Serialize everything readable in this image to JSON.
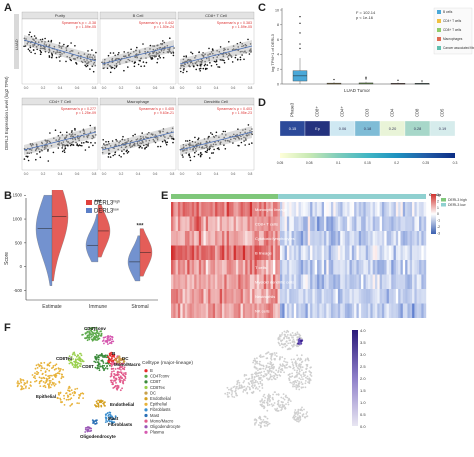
{
  "panels": {
    "A": {
      "letter": "A",
      "ylabel": "DERL3 Expression Level (log2 TPM)",
      "strip_label": "LUAD",
      "facets": [
        {
          "title": "Purity",
          "stat1": "Spearman's ρ = -0.38",
          "stat2": "p = 1.59e-05"
        },
        {
          "title": "B Cell",
          "stat1": "Spearman's ρ = 0.442",
          "stat2": "p = 1.50e-24"
        },
        {
          "title": "CD8+ T Cell",
          "stat1": "Spearman's ρ = 0.383",
          "stat2": "p = 1.59e-05"
        },
        {
          "title": "CD4+ T Cell",
          "stat1": "Spearman's ρ = 0.277",
          "stat2": "p = 1.25e-09"
        },
        {
          "title": "Macrophage",
          "stat1": "Spearman's ρ = 0.405",
          "stat2": "p = 9.63e-21"
        },
        {
          "title": "Dendritic Cell",
          "stat1": "Spearman's ρ = 0.403",
          "stat2": "p = 1.95e-23"
        }
      ],
      "x_ticks": [
        "0.4",
        "0.6",
        "0.8",
        "0.0",
        "0.2",
        "0.4",
        "0.6",
        "0.0",
        "0.2",
        "0.4",
        "0.6",
        "0.8",
        "1.0"
      ]
    },
    "B": {
      "letter": "B",
      "ylabel": "Score",
      "legend_high": "DERL3",
      "legend_high_sup": "high",
      "legend_low": "DERL3",
      "legend_low_sup": "low",
      "color_high": "#e0413c",
      "color_low": "#5b7fc7",
      "categories": [
        "Estimate",
        "Immune",
        "Stromal"
      ],
      "significance": [
        "***",
        "***",
        "***"
      ],
      "y_ticks": [
        "-500",
        "0",
        "500",
        "1000",
        "1500"
      ]
    },
    "C": {
      "letter": "C",
      "stat1": "F = 102.14",
      "stat2": "p < 1e-16",
      "ylabel": "log TPM+1 of DERL3",
      "xlabel": "LUAD Tumor",
      "legend": [
        {
          "label": "B cells",
          "color": "#4aa8d8"
        },
        {
          "label": "CD4+ T cells",
          "color": "#f0c040"
        },
        {
          "label": "CD8+ T cells",
          "color": "#8fcc6a"
        },
        {
          "label": "Macrophages",
          "color": "#e06a50"
        },
        {
          "label": "Cancer associated fibroblasts",
          "color": "#5fbfae"
        }
      ],
      "y_ticks": [
        "0",
        "2",
        "4",
        "6",
        "8",
        "10"
      ]
    },
    "D": {
      "letter": "D",
      "columns": [
        "Phase3",
        "CD8+",
        "CD4+",
        "CD3",
        "CD4",
        "CD8",
        "CD5"
      ],
      "cells": [
        "0.15",
        "Ep",
        "0.06",
        "0.18",
        "0.20",
        "0.28",
        "0.19"
      ],
      "colors": [
        "#2c4a9a",
        "#24327e",
        "#cfe8f2",
        "#7fbcd6",
        "#e9f4d8",
        "#a7d7c9",
        "#d6ecec"
      ],
      "scale_ticks": [
        "0.05",
        "0.08",
        "0.1",
        "0.15",
        "0.2",
        "0.25",
        "0.3"
      ]
    },
    "E": {
      "letter": "E",
      "group_title": "Group",
      "group_high": "DERL3 high",
      "group_low": "DERL3 low",
      "rows": [
        "Monocytic lineage",
        "CD8+ T cells",
        "Cytotoxic lymphocytes",
        "B lineage",
        "T cells",
        "Myeloid dendritic cells",
        "Neutrophils",
        "NK cells"
      ],
      "scale": [
        "3",
        "2",
        "1",
        "0",
        "-1",
        "-2",
        "-3"
      ]
    },
    "F": {
      "letter": "F",
      "legend_title": "Celltype (major-lineage)",
      "legend": [
        {
          "label": "B",
          "color": "#e6292b"
        },
        {
          "label": "CD4Tconv",
          "color": "#5aa84a"
        },
        {
          "label": "CD8T",
          "color": "#3a8a3a"
        },
        {
          "label": "CD8Tex",
          "color": "#9ad04e"
        },
        {
          "label": "DC",
          "color": "#c8a04a"
        },
        {
          "label": "Endothelial",
          "color": "#d4a020"
        },
        {
          "label": "Epithelial",
          "color": "#e7b23a"
        },
        {
          "label": "Fibroblasts",
          "color": "#3c8fd0"
        },
        {
          "label": "Mast",
          "color": "#2a6fb5"
        },
        {
          "label": "Mono/Macro",
          "color": "#e25b8c"
        },
        {
          "label": "Oligodendrocyte",
          "color": "#9b59b6"
        },
        {
          "label": "Plasma",
          "color": "#d65ab0"
        }
      ],
      "cluster_labels": [
        "B",
        "CD4Tconv",
        "CD8Tex",
        "CD8T",
        "DC",
        "Mono/Macro",
        "Epithelial",
        "Endothelial",
        "Mast",
        "Fibroblasts",
        "Oligodendrocyte"
      ],
      "scale_ticks": [
        "4.0",
        "3.5",
        "3.0",
        "2.5",
        "2.0",
        "1.5",
        "1.0",
        "0.5",
        "0.0"
      ]
    }
  }
}
